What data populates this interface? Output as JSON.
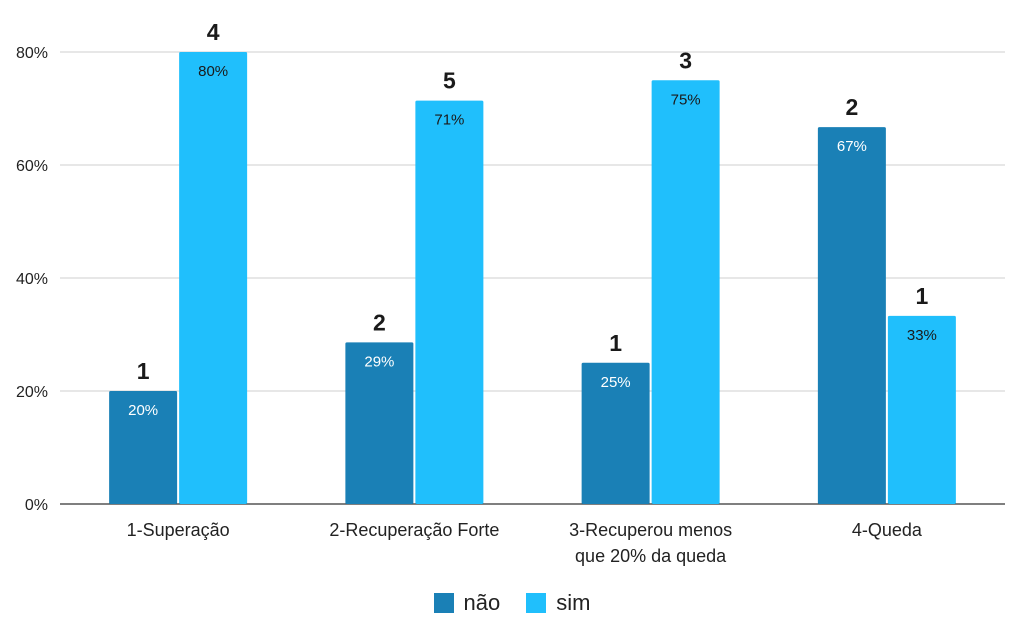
{
  "chart_data": {
    "type": "bar",
    "categories": [
      "1-Superação",
      "2-Recuperação Forte",
      "3-Recuperou menos que 20% da queda",
      "4-Queda"
    ],
    "category_lines": [
      [
        "1-Superação"
      ],
      [
        "2-Recuperação Forte"
      ],
      [
        "3-Recuperou menos",
        "que 20% da queda"
      ],
      [
        "4-Queda"
      ]
    ],
    "series": [
      {
        "name": "não",
        "color": "#1a80b6",
        "values": [
          0.2,
          0.286,
          0.25,
          0.667
        ],
        "value_labels": [
          "20%",
          "29%",
          "25%",
          "67%"
        ],
        "count_labels": [
          "1",
          "2",
          "1",
          "2"
        ]
      },
      {
        "name": "sim",
        "color": "#20bffc",
        "values": [
          0.8,
          0.714,
          0.75,
          0.333
        ],
        "value_labels": [
          "80%",
          "71%",
          "75%",
          "33%"
        ],
        "count_labels": [
          "4",
          "5",
          "3",
          "1"
        ]
      }
    ],
    "ylim": [
      0,
      0.8
    ],
    "y_ticks": [
      0,
      0.2,
      0.4,
      0.6,
      0.8
    ],
    "y_tick_labels": [
      "0%",
      "20%",
      "40%",
      "60%",
      "80%"
    ],
    "grid": true,
    "legend_position": "bottom"
  }
}
